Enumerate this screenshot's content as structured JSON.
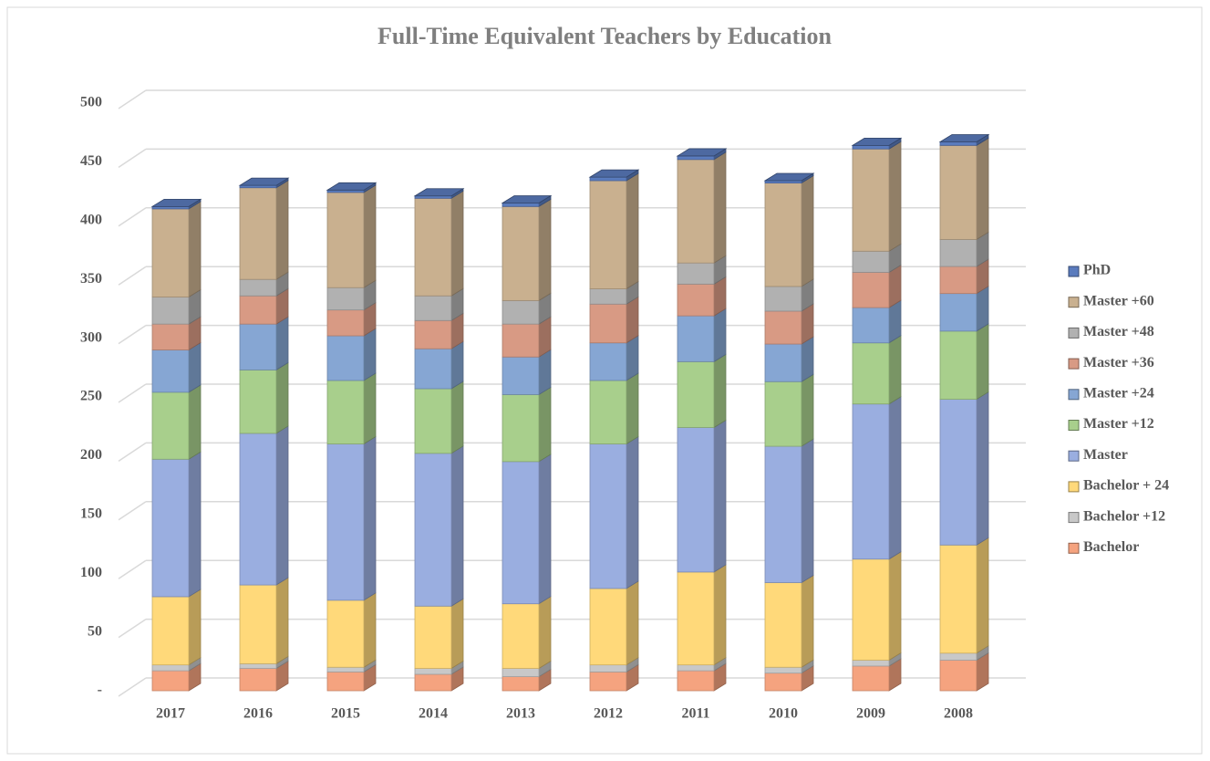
{
  "chart_data": {
    "type": "bar",
    "stacked": true,
    "title": "Full-Time Equivalent Teachers by Education",
    "categories": [
      "2017",
      "2016",
      "2015",
      "2014",
      "2013",
      "2012",
      "2011",
      "2010",
      "2009",
      "2008"
    ],
    "series": [
      {
        "name": "Bachelor",
        "color": "#f5a37f",
        "values": [
          17,
          19,
          16,
          14,
          12,
          16,
          17,
          15,
          21,
          26
        ]
      },
      {
        "name": "Bachelor +12",
        "color": "#c8c8c8",
        "values": [
          5,
          4,
          4,
          5,
          7,
          6,
          5,
          5,
          5,
          6
        ]
      },
      {
        "name": "Bachelor + 24",
        "color": "#ffd97a",
        "values": [
          58,
          67,
          57,
          53,
          55,
          65,
          79,
          72,
          86,
          92
        ]
      },
      {
        "name": "Master",
        "color": "#9aaee0",
        "values": [
          117,
          129,
          133,
          130,
          121,
          123,
          123,
          116,
          132,
          124
        ]
      },
      {
        "name": "Master +12",
        "color": "#a8cf8c",
        "values": [
          57,
          54,
          54,
          55,
          57,
          54,
          56,
          55,
          52,
          58
        ]
      },
      {
        "name": "Master +24",
        "color": "#86a6d3",
        "values": [
          36,
          39,
          38,
          34,
          32,
          32,
          39,
          32,
          30,
          32
        ]
      },
      {
        "name": "Master +36",
        "color": "#d89a84",
        "values": [
          22,
          24,
          22,
          24,
          28,
          33,
          27,
          28,
          30,
          23
        ]
      },
      {
        "name": "Master +48",
        "color": "#b1b1b1",
        "values": [
          23,
          14,
          19,
          21,
          20,
          13,
          18,
          21,
          18,
          23
        ]
      },
      {
        "name": "Master +60",
        "color": "#c9b08f",
        "values": [
          75,
          78,
          81,
          83,
          80,
          92,
          88,
          88,
          87,
          80
        ]
      },
      {
        "name": "PhD",
        "color": "#5a7bbd",
        "values": [
          2,
          2,
          2,
          2,
          3,
          3,
          3,
          2,
          3,
          3
        ]
      }
    ],
    "ylim": [
      0,
      500
    ],
    "yticks": [
      {
        "value": 0,
        "label": "-"
      },
      50,
      100,
      150,
      200,
      250,
      300,
      350,
      400,
      450,
      500
    ],
    "grid": true,
    "legend": "right"
  }
}
